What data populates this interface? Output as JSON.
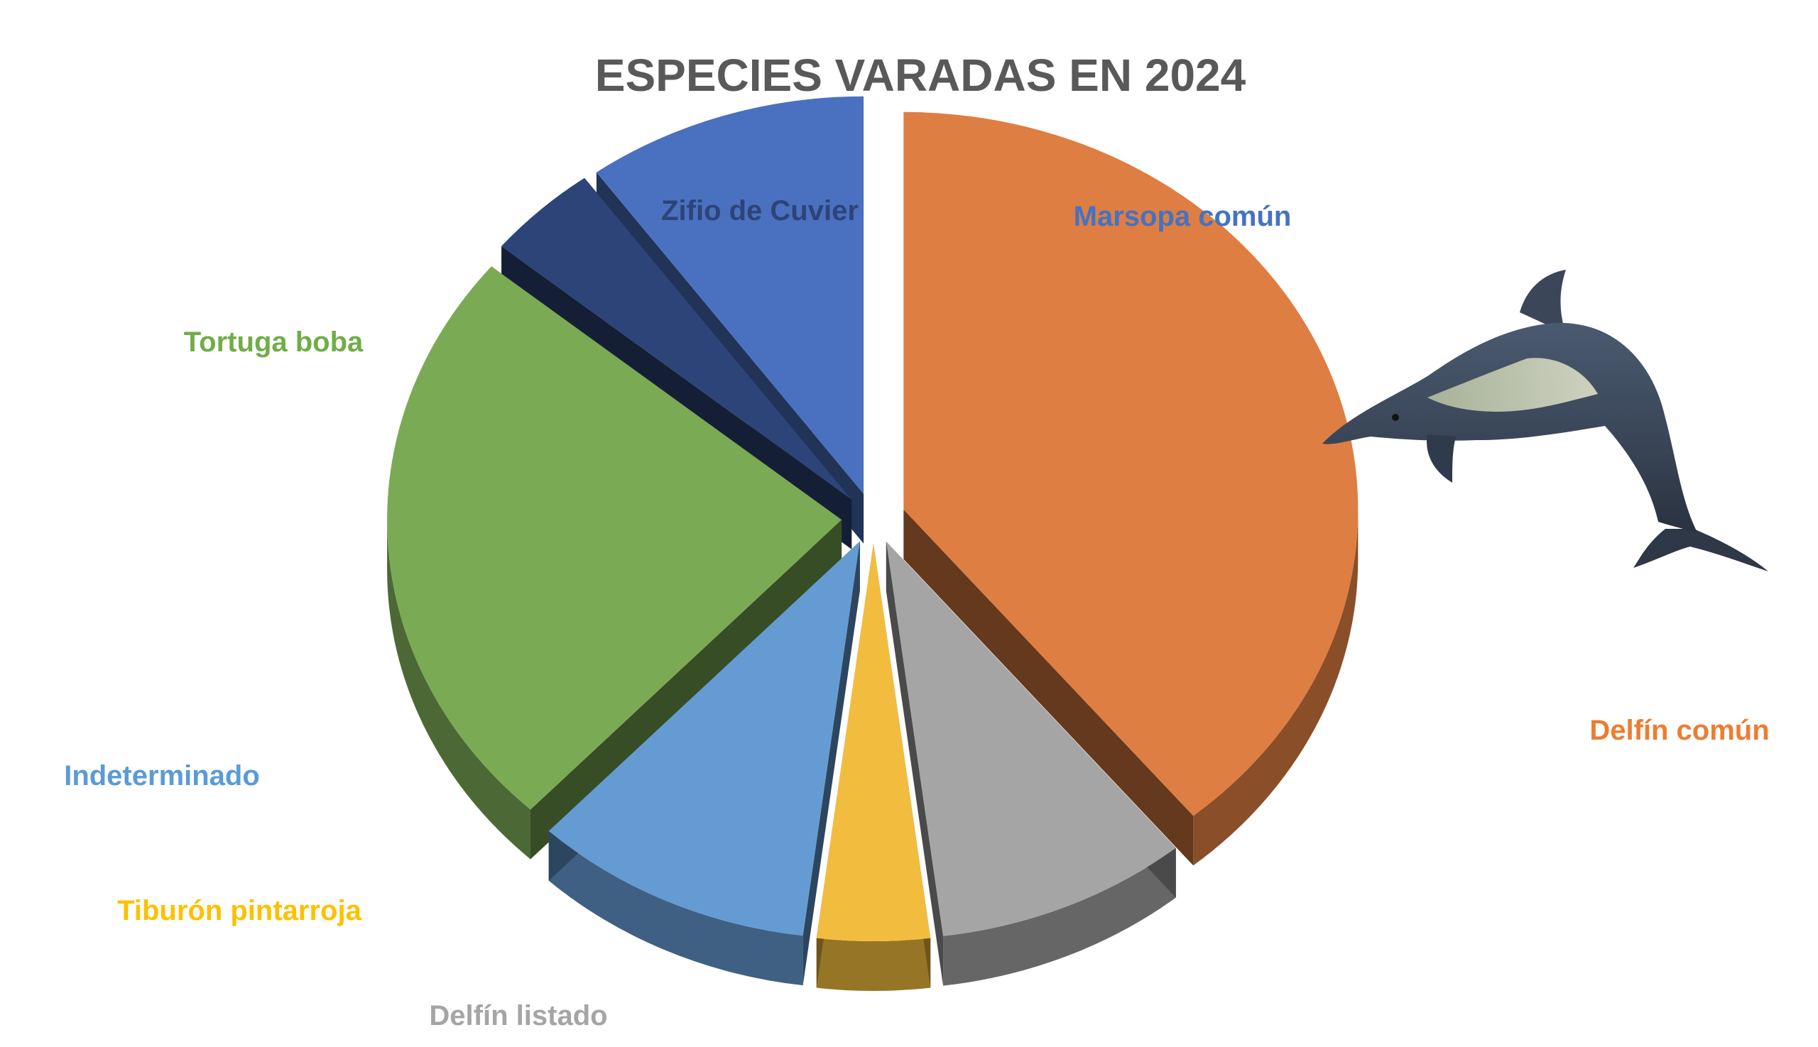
{
  "chart_data": {
    "type": "pie",
    "title": "ESPECIES VARADAS EN 2024",
    "slices": [
      {
        "label": "Delfín común",
        "value": 39,
        "color": "#DE7E42"
      },
      {
        "label": "Delfín listado",
        "value": 9,
        "color": "#A5A5A5"
      },
      {
        "label": "Tiburón pintarroja",
        "value": 4,
        "color": "#F2BD3F"
      },
      {
        "label": "Indeterminado",
        "value": 10,
        "color": "#659BD3"
      },
      {
        "label": "Tortuga boba",
        "value": 24,
        "color": "#7BAA55"
      },
      {
        "label": "Zifio de Cuvier",
        "value": 4,
        "color": "#2C4478"
      },
      {
        "label": "Marsopa común",
        "value": 10,
        "color": "#4A71BF"
      }
    ],
    "legend": "none",
    "style": "3d-exploded"
  },
  "decoration": {
    "icon": "dolphin-icon"
  }
}
